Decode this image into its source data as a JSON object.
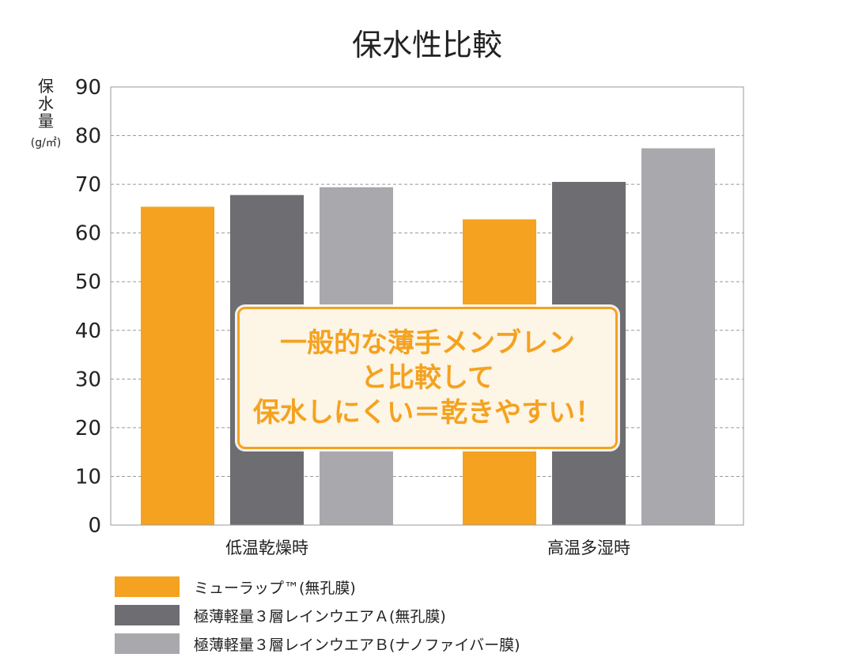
{
  "chart_data": {
    "type": "bar",
    "title": "保水性比較",
    "ylabel_chars": [
      "保",
      "水",
      "量"
    ],
    "yunit": "(g/㎡)",
    "categories": [
      "低温乾燥時",
      "高温多湿時"
    ],
    "ylim": [
      0,
      90
    ],
    "yticks": [
      0,
      10,
      20,
      30,
      40,
      50,
      60,
      70,
      80,
      90
    ],
    "grid": true,
    "legend_position": "bottom",
    "series": [
      {
        "name": "ミューラップ™(無孔膜)",
        "color": "#f4a21f",
        "values": [
          65.4,
          62.8
        ]
      },
      {
        "name": "極薄軽量３層レインウエアＡ(無孔膜)",
        "color": "#6e6d71",
        "values": [
          67.8,
          70.5
        ]
      },
      {
        "name": "極薄軽量３層レインウエアＢ(ナノファイバー膜)",
        "color": "#a9a8ac",
        "values": [
          69.4,
          77.4
        ]
      }
    ]
  },
  "callout": {
    "lines": [
      "一般的な薄手メンブレン",
      "と比較して",
      "保水しにくい＝乾きやすい！"
    ],
    "color": "#f4a21f"
  }
}
